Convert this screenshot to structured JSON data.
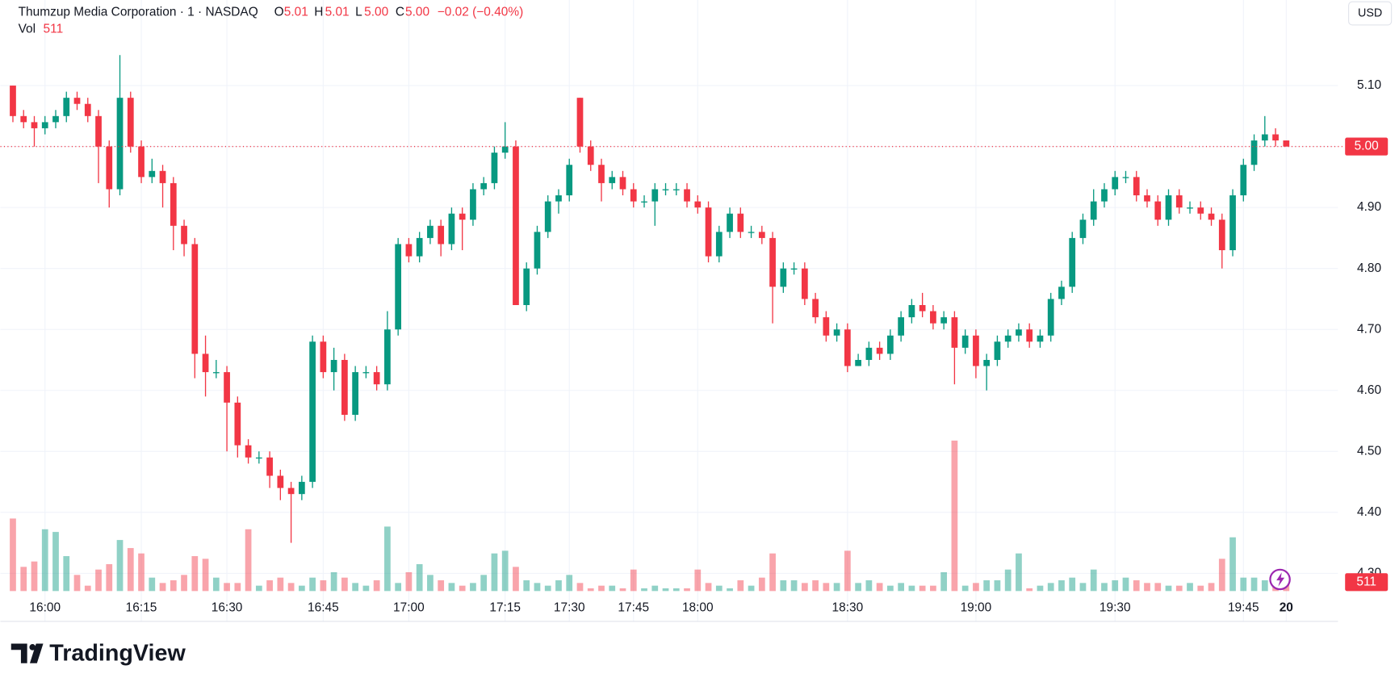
{
  "chart_data": {
    "type": "candlestick",
    "title": "Thumzup Media Corporation · 1 · NASDAQ",
    "legend": {
      "open_label": "O",
      "open": "5.01",
      "high_label": "H",
      "high": "5.01",
      "low_label": "L",
      "low": "5.00",
      "close_label": "C",
      "close": "5.00",
      "change": "−0.02 (−0.40%)",
      "volume_label": "Vol"
    },
    "currency": "USD",
    "brand": "TradingView",
    "up_color": "#089981",
    "down_color": "#f23645",
    "categories": [
      null,
      null,
      null,
      "16:00",
      null,
      null,
      null,
      null,
      null,
      null,
      null,
      null,
      "16:15",
      null,
      null,
      null,
      null,
      null,
      null,
      null,
      "16:30",
      null,
      null,
      null,
      null,
      null,
      null,
      null,
      null,
      "16:45",
      null,
      null,
      null,
      null,
      null,
      null,
      null,
      "17:00",
      null,
      null,
      null,
      null,
      null,
      null,
      null,
      null,
      "17:15",
      null,
      null,
      null,
      null,
      null,
      "17:30",
      null,
      null,
      null,
      null,
      null,
      "17:45",
      null,
      null,
      null,
      null,
      null,
      "18:00",
      null,
      null,
      null,
      null,
      null,
      null,
      null,
      null,
      null,
      null,
      null,
      null,
      null,
      "18:30",
      null,
      null,
      null,
      null,
      null,
      null,
      null,
      null,
      null,
      null,
      null,
      "19:00",
      null,
      null,
      null,
      null,
      null,
      null,
      null,
      null,
      null,
      null,
      null,
      null,
      "19:30",
      null,
      null,
      null,
      null,
      null,
      null,
      null,
      null,
      null,
      null,
      null,
      "19:45",
      null,
      null,
      null,
      "20"
    ],
    "open": [
      5.1,
      5.05,
      5.04,
      5.03,
      5.04,
      5.05,
      5.08,
      5.07,
      5.05,
      5.0,
      4.93,
      5.08,
      5.0,
      4.95,
      4.96,
      4.94,
      4.87,
      4.84,
      4.66,
      4.63,
      4.63,
      4.58,
      4.51,
      4.49,
      4.49,
      4.46,
      4.44,
      4.43,
      4.45,
      4.68,
      4.63,
      4.65,
      4.56,
      4.63,
      4.63,
      4.61,
      4.7,
      4.84,
      4.82,
      4.85,
      4.87,
      4.84,
      4.89,
      4.88,
      4.93,
      4.94,
      4.99,
      5.0,
      4.74,
      4.8,
      4.86,
      4.91,
      4.92,
      5.08,
      5.0,
      4.97,
      4.94,
      4.95,
      4.93,
      4.91,
      4.91,
      4.93,
      4.93,
      4.93,
      4.91,
      4.9,
      4.82,
      4.86,
      4.89,
      4.86,
      4.86,
      4.85,
      4.77,
      4.8,
      4.8,
      4.75,
      4.72,
      4.69,
      4.7,
      4.64,
      4.65,
      4.67,
      4.66,
      4.69,
      4.72,
      4.74,
      4.73,
      4.71,
      4.72,
      4.67,
      4.69,
      4.64,
      4.65,
      4.68,
      4.69,
      4.7,
      4.68,
      4.69,
      4.75,
      4.77,
      4.85,
      4.88,
      4.91,
      4.93,
      4.95,
      4.95,
      4.92,
      4.91,
      4.88,
      4.92,
      4.9,
      4.9,
      4.89,
      4.88,
      4.83,
      4.92,
      4.97,
      5.01,
      5.02,
      5.01
    ],
    "high": [
      5.1,
      5.06,
      5.05,
      5.05,
      5.06,
      5.09,
      5.09,
      5.08,
      5.06,
      5.01,
      5.15,
      5.09,
      5.01,
      4.98,
      4.97,
      4.95,
      4.88,
      4.85,
      4.69,
      4.65,
      4.64,
      4.59,
      4.52,
      4.5,
      4.5,
      4.47,
      4.45,
      4.46,
      4.69,
      4.69,
      4.67,
      4.66,
      4.64,
      4.64,
      4.64,
      4.73,
      4.85,
      4.85,
      4.86,
      4.88,
      4.88,
      4.9,
      4.9,
      4.94,
      4.95,
      5.0,
      5.04,
      5.01,
      4.81,
      4.87,
      4.92,
      4.93,
      4.98,
      5.08,
      5.01,
      4.98,
      4.96,
      4.96,
      4.94,
      4.92,
      4.94,
      4.94,
      4.94,
      4.94,
      4.92,
      4.91,
      4.87,
      4.9,
      4.9,
      4.87,
      4.87,
      4.86,
      4.81,
      4.81,
      4.81,
      4.76,
      4.73,
      4.71,
      4.71,
      4.66,
      4.68,
      4.68,
      4.7,
      4.73,
      4.75,
      4.76,
      4.74,
      4.73,
      4.73,
      4.7,
      4.7,
      4.66,
      4.69,
      4.7,
      4.71,
      4.71,
      4.7,
      4.76,
      4.78,
      4.86,
      4.89,
      4.93,
      4.94,
      4.96,
      4.96,
      4.96,
      4.93,
      4.92,
      4.93,
      4.93,
      4.91,
      4.91,
      4.9,
      4.89,
      4.93,
      4.98,
      5.02,
      5.05,
      5.03,
      5.01
    ],
    "low": [
      5.04,
      5.03,
      5.0,
      5.02,
      5.03,
      5.04,
      5.06,
      5.04,
      4.94,
      4.9,
      4.92,
      4.99,
      4.94,
      4.94,
      4.9,
      4.83,
      4.82,
      4.62,
      4.59,
      4.62,
      4.5,
      4.49,
      4.48,
      4.48,
      4.44,
      4.42,
      4.35,
      4.42,
      4.44,
      4.62,
      4.6,
      4.55,
      4.55,
      4.62,
      4.6,
      4.6,
      4.69,
      4.81,
      4.81,
      4.84,
      4.82,
      4.83,
      4.83,
      4.87,
      4.92,
      4.93,
      4.98,
      4.74,
      4.73,
      4.79,
      4.85,
      4.89,
      4.91,
      4.99,
      4.96,
      4.91,
      4.93,
      4.92,
      4.9,
      4.9,
      4.87,
      4.92,
      4.92,
      4.9,
      4.89,
      4.81,
      4.81,
      4.85,
      4.85,
      4.85,
      4.84,
      4.71,
      4.76,
      4.79,
      4.74,
      4.71,
      4.68,
      4.68,
      4.63,
      4.64,
      4.64,
      4.65,
      4.65,
      4.68,
      4.71,
      4.72,
      4.7,
      4.7,
      4.61,
      4.66,
      4.62,
      4.6,
      4.64,
      4.67,
      4.68,
      4.67,
      4.67,
      4.68,
      4.74,
      4.76,
      4.84,
      4.87,
      4.9,
      4.92,
      4.94,
      4.91,
      4.9,
      4.87,
      4.87,
      4.89,
      4.89,
      4.88,
      4.87,
      4.8,
      4.82,
      4.91,
      4.96,
      5.0,
      5.0,
      5.0
    ],
    "close": [
      5.05,
      5.04,
      5.03,
      5.04,
      5.05,
      5.08,
      5.07,
      5.05,
      5.0,
      4.93,
      5.08,
      5.0,
      4.95,
      4.96,
      4.94,
      4.87,
      4.84,
      4.66,
      4.63,
      4.63,
      4.58,
      4.51,
      4.49,
      4.49,
      4.46,
      4.44,
      4.43,
      4.45,
      4.68,
      4.63,
      4.65,
      4.56,
      4.63,
      4.63,
      4.61,
      4.7,
      4.84,
      4.82,
      4.85,
      4.87,
      4.84,
      4.89,
      4.88,
      4.93,
      4.94,
      4.99,
      5.0,
      4.74,
      4.8,
      4.86,
      4.91,
      4.92,
      4.97,
      5.0,
      4.97,
      4.94,
      4.95,
      4.93,
      4.91,
      4.91,
      4.93,
      4.93,
      4.93,
      4.91,
      4.9,
      4.82,
      4.86,
      4.89,
      4.86,
      4.86,
      4.85,
      4.77,
      4.8,
      4.8,
      4.75,
      4.72,
      4.69,
      4.7,
      4.64,
      4.65,
      4.67,
      4.66,
      4.69,
      4.72,
      4.74,
      4.73,
      4.71,
      4.72,
      4.67,
      4.69,
      4.64,
      4.65,
      4.68,
      4.69,
      4.7,
      4.68,
      4.69,
      4.75,
      4.77,
      4.85,
      4.88,
      4.91,
      4.93,
      4.95,
      4.95,
      4.92,
      4.91,
      4.88,
      4.92,
      4.9,
      4.9,
      4.89,
      4.88,
      4.83,
      4.92,
      4.97,
      5.01,
      5.02,
      5.01,
      5.0
    ],
    "volume": [
      2700,
      900,
      1100,
      2300,
      2200,
      1300,
      600,
      200,
      800,
      1000,
      1900,
      1600,
      1400,
      500,
      300,
      400,
      600,
      1300,
      1200,
      500,
      300,
      300,
      2300,
      200,
      400,
      500,
      300,
      200,
      500,
      400,
      700,
      500,
      300,
      200,
      400,
      2400,
      300,
      700,
      1000,
      600,
      400,
      300,
      200,
      300,
      600,
      1400,
      1500,
      900,
      400,
      300,
      200,
      400,
      600,
      300,
      100,
      200,
      200,
      100,
      800,
      100,
      200,
      100,
      100,
      100,
      800,
      300,
      200,
      100,
      400,
      200,
      500,
      1400,
      400,
      400,
      300,
      400,
      300,
      300,
      1500,
      300,
      400,
      300,
      200,
      300,
      200,
      200,
      200,
      700,
      5600,
      200,
      300,
      400,
      400,
      800,
      1400,
      100,
      200,
      300,
      400,
      500,
      300,
      800,
      300,
      400,
      500,
      400,
      300,
      300,
      200,
      200,
      300,
      200,
      300,
      1200,
      2000,
      500,
      500,
      400,
      400,
      511
    ],
    "ylim": [
      4.268,
      5.2404
    ],
    "yticks": [
      {
        "value": 4.3,
        "label": "4.30"
      },
      {
        "value": 4.4,
        "label": "4.40"
      },
      {
        "value": 4.5,
        "label": "4.50"
      },
      {
        "value": 4.6,
        "label": "4.60"
      },
      {
        "value": 4.7,
        "label": "4.70"
      },
      {
        "value": 4.8,
        "label": "4.80"
      },
      {
        "value": 4.9,
        "label": "4.90"
      },
      {
        "value": 5.0,
        "label": "5.00"
      },
      {
        "value": 5.1,
        "label": "5.10"
      }
    ],
    "vol_lim": [
      0,
      22000
    ],
    "last_price": {
      "value": 5.0,
      "label": "5.00"
    },
    "grid": true
  }
}
